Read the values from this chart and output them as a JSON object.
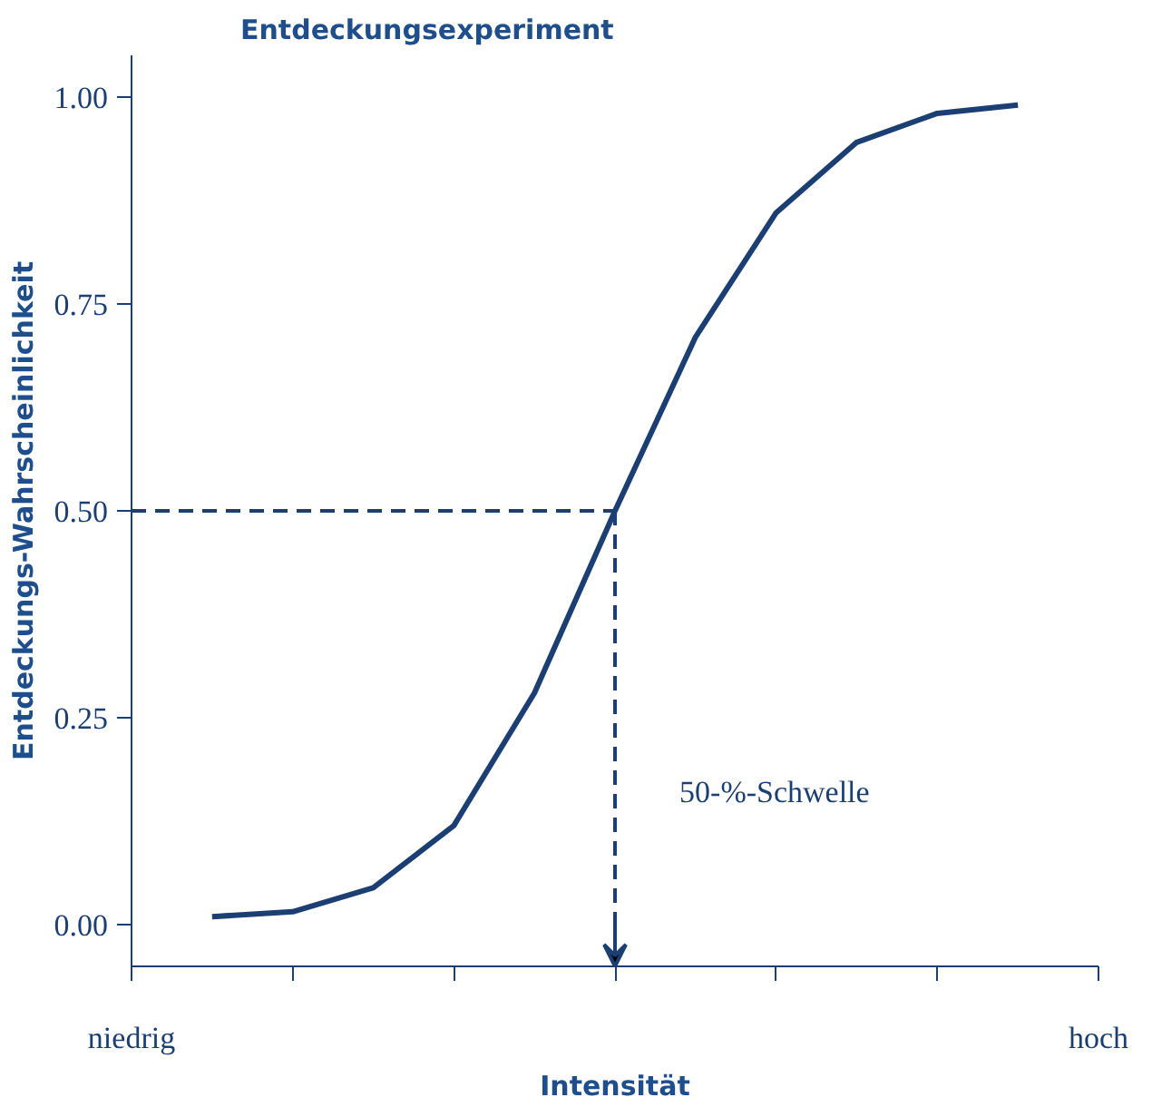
{
  "chart_data": {
    "type": "line",
    "title": "Entdeckungsexperiment",
    "xlabel": "Intensität",
    "ylabel": "Entdeckungs-Wahrscheinlichkeit",
    "categories": [
      "niedrig",
      null,
      null,
      null,
      null,
      null,
      null,
      null,
      null,
      null,
      null,
      null,
      "hoch"
    ],
    "series": [
      {
        "color": "#1b3f73",
        "values": [
          null,
          0.01,
          0.016,
          0.045,
          0.12,
          0.28,
          0.5,
          0.71,
          0.86,
          0.945,
          0.98,
          0.99,
          null
        ]
      }
    ],
    "ylim": [
      -0.05,
      1.05
    ],
    "yticks": [
      {
        "value": 0,
        "label": "0.00"
      },
      {
        "value": 0.25,
        "label": "0.25"
      },
      {
        "value": 0.5,
        "label": "0.50"
      },
      {
        "value": 0.75,
        "label": "0.75"
      },
      {
        "value": 1,
        "label": "1.00"
      }
    ],
    "ref_lines": [
      {
        "axis": "y",
        "value": 0.5,
        "line_style": "dashed",
        "color": "#1b3f73"
      }
    ],
    "annotations": [
      "50-%-Schwelle"
    ],
    "grid": false,
    "marker": "none",
    "line_style": "solid"
  }
}
